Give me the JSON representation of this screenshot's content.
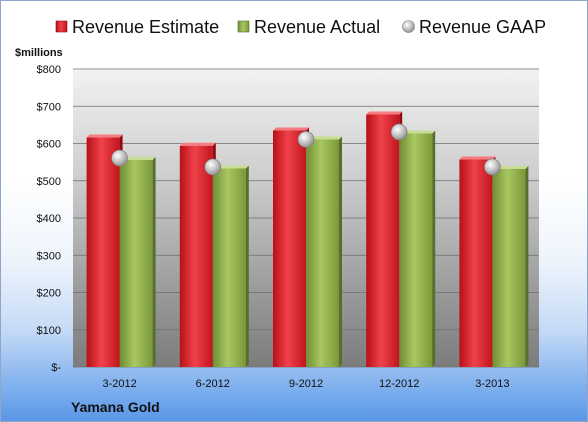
{
  "chart_data": {
    "type": "bar",
    "title": "",
    "unit_label": "$millions",
    "company": "Yamana Gold",
    "categories": [
      "3-2012",
      "6-2012",
      "9-2012",
      "12-2012",
      "3-2013"
    ],
    "series": [
      {
        "name": "Revenue Estimate",
        "kind": "bar",
        "color": "#d9202a",
        "values": [
          616,
          594,
          635,
          678,
          557
        ]
      },
      {
        "name": "Revenue Actual",
        "kind": "bar",
        "color": "#8fb04a",
        "values": [
          556,
          533,
          611,
          627,
          532
        ]
      },
      {
        "name": "Revenue GAAP",
        "kind": "marker",
        "color": "#c8c8c8",
        "values": [
          561,
          537,
          611,
          631,
          537
        ]
      }
    ],
    "y_ticks": [
      {
        "value": 0,
        "label": "$-"
      },
      {
        "value": 100,
        "label": "$100"
      },
      {
        "value": 200,
        "label": "$200"
      },
      {
        "value": 300,
        "label": "$300"
      },
      {
        "value": 400,
        "label": "$400"
      },
      {
        "value": 500,
        "label": "$500"
      },
      {
        "value": 600,
        "label": "$600"
      },
      {
        "value": 700,
        "label": "$700"
      },
      {
        "value": 800,
        "label": "$800"
      }
    ],
    "ylim": [
      0,
      800
    ],
    "grid": true,
    "legend_position": "top"
  }
}
